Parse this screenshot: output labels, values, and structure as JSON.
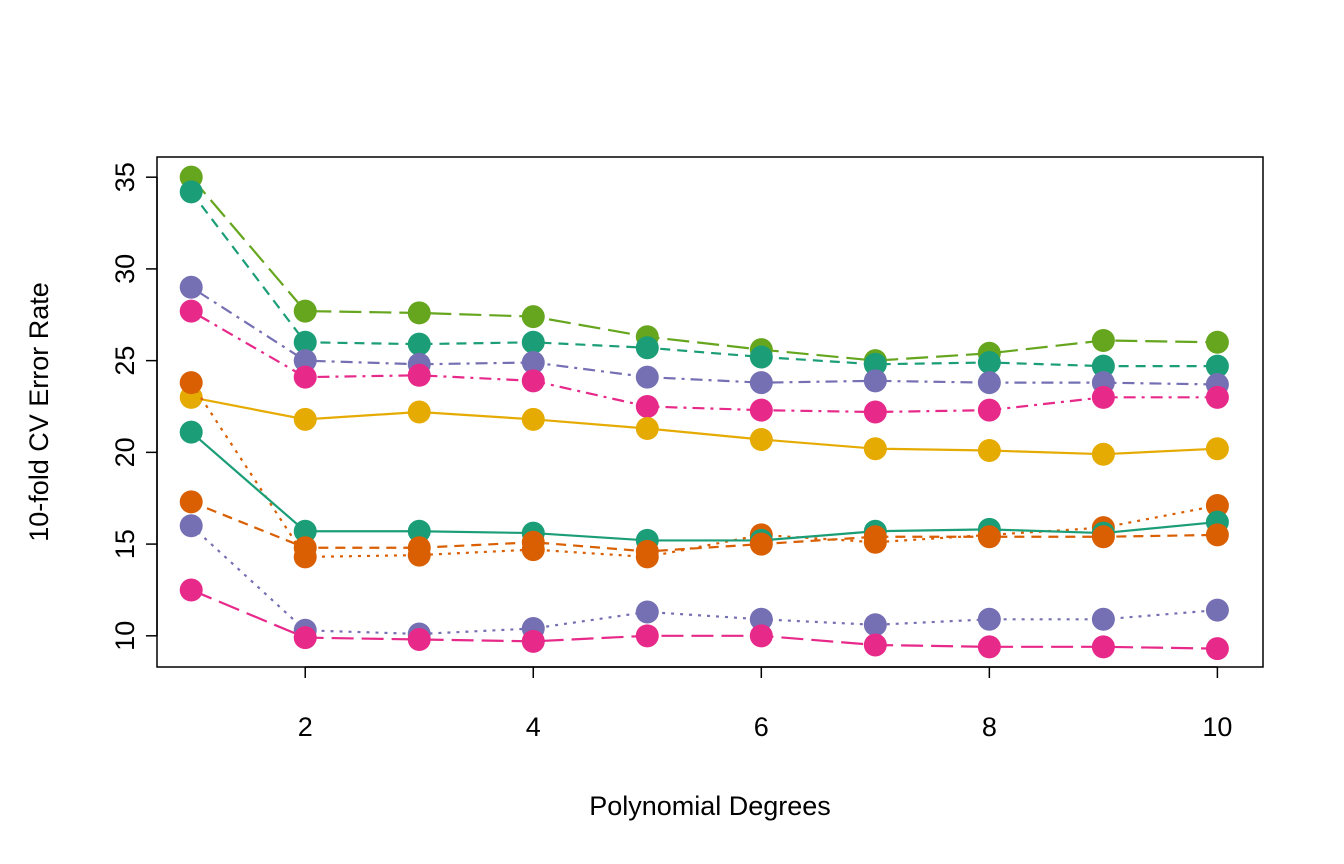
{
  "chart_data": {
    "type": "line",
    "title": "",
    "xlabel": "Polynomial Degrees",
    "ylabel": "10-fold CV Error Rate",
    "xlim": [
      0.7,
      10.4
    ],
    "ylim": [
      8.3,
      36.1
    ],
    "xticks": [
      "2",
      "4",
      "6",
      "8",
      "10"
    ],
    "yticks": [
      "10",
      "15",
      "20",
      "25",
      "30",
      "35"
    ],
    "grid": false,
    "x": [
      1,
      2,
      3,
      4,
      5,
      6,
      7,
      8,
      9,
      10
    ],
    "series": [
      {
        "color": "#66A61E",
        "dash": "long-dash",
        "values": [
          35.0,
          27.7,
          27.6,
          27.4,
          26.3,
          25.6,
          25.0,
          25.4,
          26.1,
          26.0
        ]
      },
      {
        "color": "#1B9E77",
        "dash": "dashed",
        "values": [
          34.2,
          26.0,
          25.9,
          26.0,
          25.7,
          25.2,
          24.8,
          24.9,
          24.7,
          24.7
        ]
      },
      {
        "color": "#7570B3",
        "dash": "dot-dash",
        "values": [
          29.0,
          25.0,
          24.8,
          24.9,
          24.1,
          23.8,
          23.9,
          23.8,
          23.8,
          23.7
        ]
      },
      {
        "color": "#E7298A",
        "dash": "dot-dash",
        "values": [
          27.7,
          24.1,
          24.2,
          23.9,
          22.5,
          22.3,
          22.2,
          22.3,
          23.0,
          23.0
        ]
      },
      {
        "color": "#E6AB02",
        "dash": "solid",
        "values": [
          23.0,
          21.8,
          22.2,
          21.8,
          21.3,
          20.7,
          20.2,
          20.1,
          19.9,
          20.2
        ]
      },
      {
        "color": "#D95F02",
        "dash": "dotted",
        "values": [
          23.8,
          14.3,
          14.4,
          14.7,
          14.3,
          15.5,
          15.1,
          15.5,
          15.9,
          17.1
        ]
      },
      {
        "color": "#1B9E77",
        "dash": "solid",
        "values": [
          21.1,
          15.7,
          15.7,
          15.6,
          15.2,
          15.2,
          15.7,
          15.8,
          15.6,
          16.2
        ]
      },
      {
        "color": "#D95F02",
        "dash": "dashed",
        "values": [
          17.3,
          14.8,
          14.8,
          15.1,
          14.6,
          15.0,
          15.4,
          15.4,
          15.4,
          15.5
        ]
      },
      {
        "color": "#7570B3",
        "dash": "dotted",
        "values": [
          16.0,
          10.3,
          10.1,
          10.4,
          11.3,
          10.9,
          10.6,
          10.9,
          10.9,
          11.4
        ]
      },
      {
        "color": "#E7298A",
        "dash": "long-dash",
        "values": [
          12.5,
          9.9,
          9.8,
          9.7,
          10.0,
          10.0,
          9.5,
          9.4,
          9.4,
          9.3
        ]
      }
    ]
  }
}
